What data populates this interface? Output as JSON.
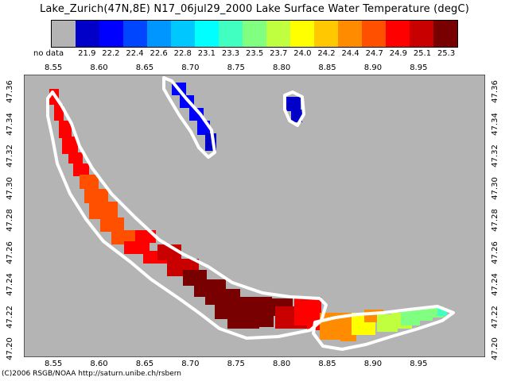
{
  "title": "Lake_Zurich(47N,8E) N17_06jul29_2000 Lake Surface Water Temperature (degC)",
  "legend": {
    "no_data_label": "no data",
    "swatches": [
      {
        "label": "",
        "color": "#b4b4b4"
      },
      {
        "label": "21.9",
        "color": "#0000c8"
      },
      {
        "label": "22.2",
        "color": "#0000ff"
      },
      {
        "label": "22.4",
        "color": "#0046ff"
      },
      {
        "label": "22.6",
        "color": "#0096ff"
      },
      {
        "label": "22.8",
        "color": "#00c8ff"
      },
      {
        "label": "23.1",
        "color": "#00ffff"
      },
      {
        "label": "23.3",
        "color": "#40ffc0"
      },
      {
        "label": "23.5",
        "color": "#80ff80"
      },
      {
        "label": "23.7",
        "color": "#c0ff40"
      },
      {
        "label": "24.0",
        "color": "#ffff00"
      },
      {
        "label": "24.2",
        "color": "#ffc800"
      },
      {
        "label": "24.4",
        "color": "#ff8c00"
      },
      {
        "label": "24.7",
        "color": "#ff5000"
      },
      {
        "label": "24.9",
        "color": "#ff0000"
      },
      {
        "label": "25.1",
        "color": "#c80000"
      },
      {
        "label": "25.3",
        "color": "#780000"
      }
    ]
  },
  "axes": {
    "x_ticks": [
      "8.55",
      "8.60",
      "8.65",
      "8.70",
      "8.75",
      "8.80",
      "8.85",
      "8.90",
      "8.95"
    ],
    "y_ticks": [
      "47.36",
      "47.34",
      "47.32",
      "47.30",
      "47.28",
      "47.26",
      "47.24",
      "47.22",
      "47.20"
    ]
  },
  "credit": "(C)2006 RSGB/NOAA  http://saturn.unibe.ch/rsbern",
  "colors": {
    "background": "#b4b4b4",
    "shoreline": "#ffffff",
    "frame": "#000000"
  }
}
